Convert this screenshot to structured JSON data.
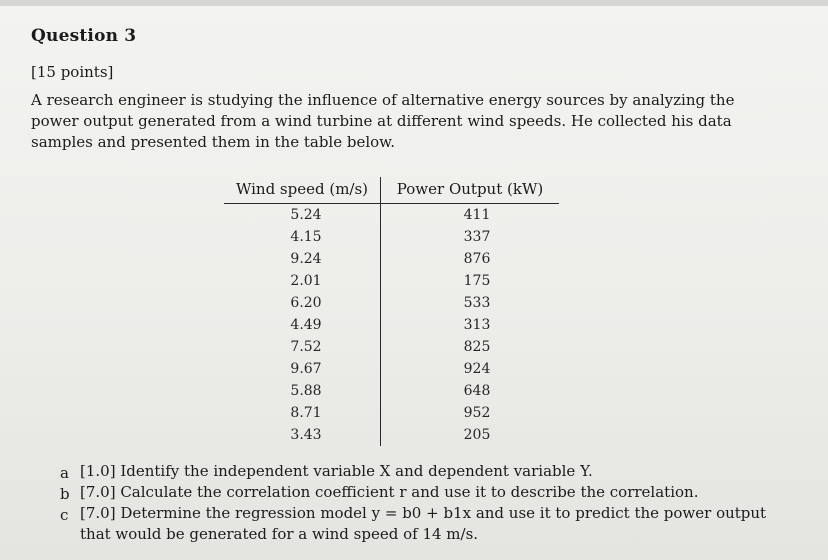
{
  "question": {
    "title": "Question 3",
    "points": "[15 points]",
    "intro": "A research engineer is studying the influence of alternative energy sources by analyzing the power output generated from a wind turbine at different wind speeds. He collected his data samples and presented them in the table below."
  },
  "table": {
    "headers": [
      "Wind speed (m/s)",
      "Power Output (kW)"
    ],
    "rows": [
      [
        "5.24",
        "411"
      ],
      [
        "4.15",
        "337"
      ],
      [
        "9.24",
        "876"
      ],
      [
        "2.01",
        "175"
      ],
      [
        "6.20",
        "533"
      ],
      [
        "4.49",
        "313"
      ],
      [
        "7.52",
        "825"
      ],
      [
        "9.67",
        "924"
      ],
      [
        "5.88",
        "648"
      ],
      [
        "8.71",
        "952"
      ],
      [
        "3.43",
        "205"
      ]
    ]
  },
  "parts": [
    {
      "label": "a",
      "text": "[1.0] Identify the independent variable X and dependent variable Y."
    },
    {
      "label": "b",
      "text": "[7.0] Calculate the correlation coefficient r and use it to describe the correlation."
    },
    {
      "label": "c",
      "text": "[7.0] Determine the regression model y = b0 + b1x and use it to predict the power output that would be generated for a wind speed of 14 m/s."
    }
  ]
}
